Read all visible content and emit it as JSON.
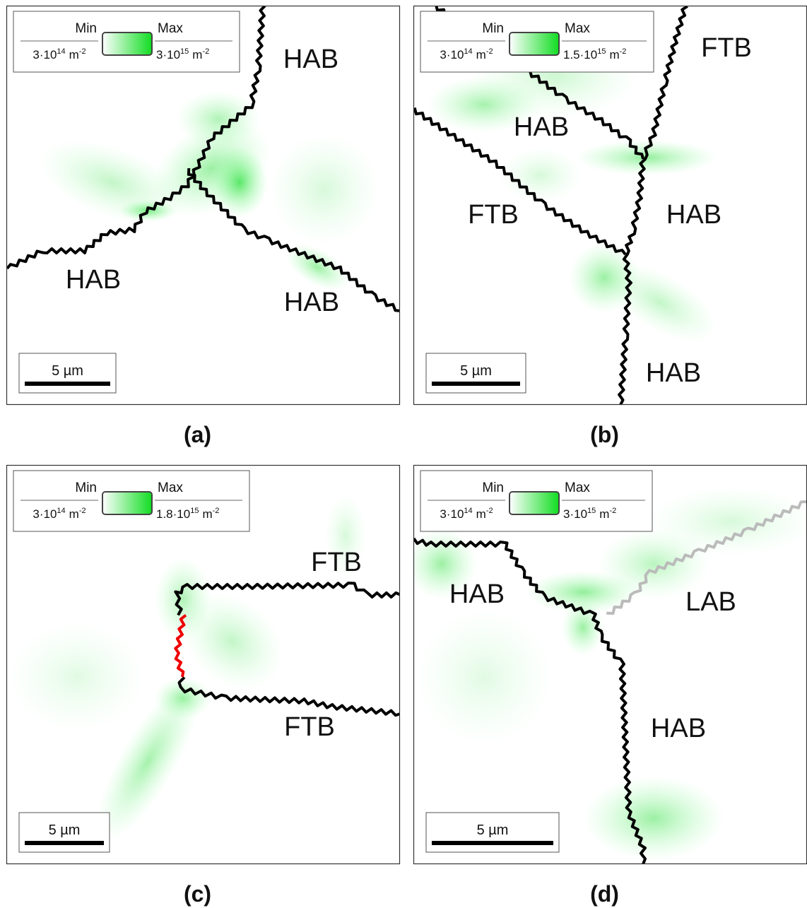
{
  "panels": [
    {
      "label": "(a)",
      "legend": {
        "min_label": "Min",
        "max_label": "Max",
        "min_value": {
          "base": "3·10",
          "exponent": "14",
          "unit": "m",
          "unit_exponent": "-2"
        },
        "max_value": {
          "base": "3·10",
          "exponent": "15",
          "unit": "m",
          "unit_exponent": "-2"
        }
      },
      "scale_bar": "5 µm",
      "boundary_labels": [
        "HAB",
        "HAB",
        "HAB"
      ]
    },
    {
      "label": "(b)",
      "legend": {
        "min_label": "Min",
        "max_label": "Max",
        "min_value": {
          "base": "3·10",
          "exponent": "14",
          "unit": "m",
          "unit_exponent": "-2"
        },
        "max_value": {
          "base": "1.5·10",
          "exponent": "15",
          "unit": "m",
          "unit_exponent": "-2"
        }
      },
      "scale_bar": "5 µm",
      "boundary_labels": [
        "HAB",
        "FTB",
        "FTB",
        "HAB",
        "HAB"
      ]
    },
    {
      "label": "(c)",
      "legend": {
        "min_label": "Min",
        "max_label": "Max",
        "min_value": {
          "base": "3·10",
          "exponent": "14",
          "unit": "m",
          "unit_exponent": "-2"
        },
        "max_value": {
          "base": "1.8·10",
          "exponent": "15",
          "unit": "m",
          "unit_exponent": "-2"
        }
      },
      "scale_bar": "5 µm",
      "boundary_labels": [
        "FTB",
        "FTB"
      ]
    },
    {
      "label": "(d)",
      "legend": {
        "min_label": "Min",
        "max_label": "Max",
        "min_value": {
          "base": "3·10",
          "exponent": "14",
          "unit": "m",
          "unit_exponent": "-2"
        },
        "max_value": {
          "base": "3·10",
          "exponent": "15",
          "unit": "m",
          "unit_exponent": "-2"
        }
      },
      "scale_bar": "5 µm",
      "boundary_labels": [
        "HAB",
        "LAB",
        "HAB"
      ]
    }
  ]
}
